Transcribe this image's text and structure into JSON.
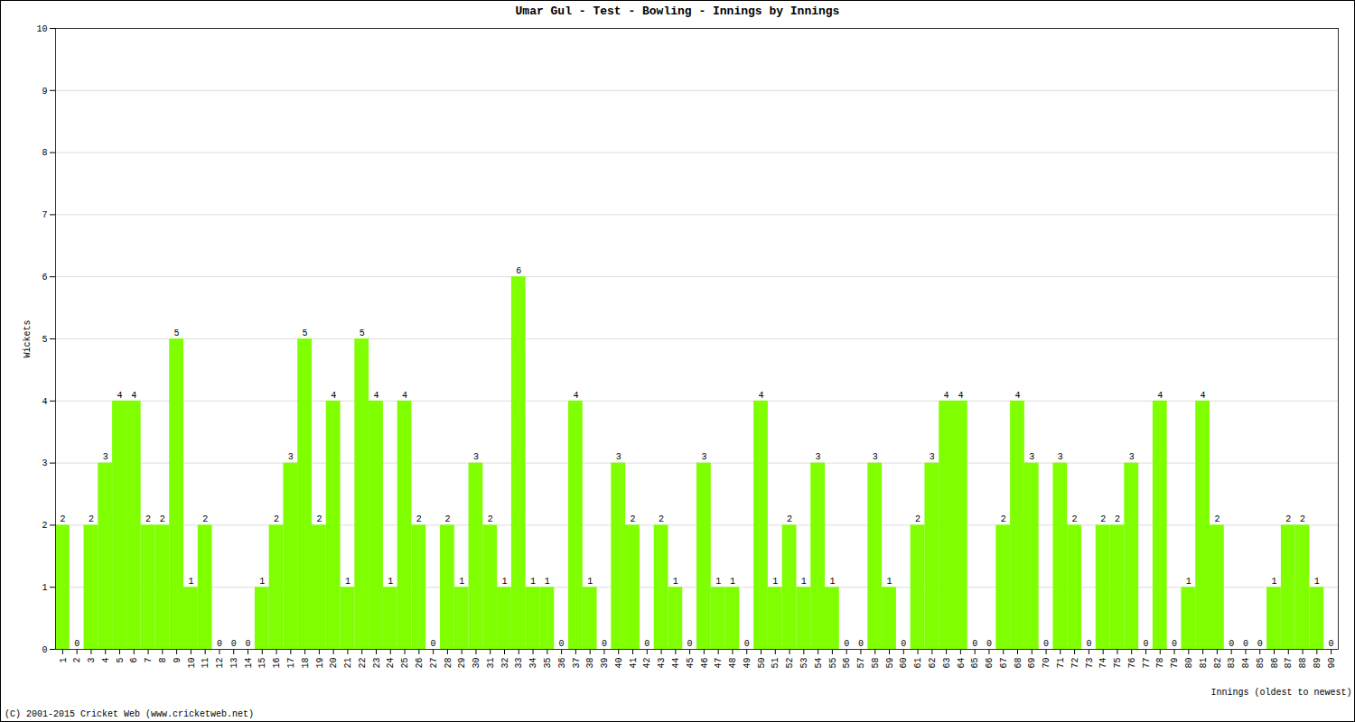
{
  "chart_data": {
    "type": "bar",
    "title": "Umar Gul - Test - Bowling - Innings by Innings",
    "x_label": "Innings (oldest to newest)",
    "y_label": "Wickets",
    "caption": "(C) 2001-2015 Cricket Web (www.cricketweb.net)",
    "categories": [
      "1",
      "2",
      "3",
      "4",
      "5",
      "6",
      "7",
      "8",
      "9",
      "10",
      "11",
      "12",
      "13",
      "14",
      "15",
      "16",
      "17",
      "18",
      "19",
      "20",
      "21",
      "22",
      "23",
      "24",
      "25",
      "26",
      "27",
      "28",
      "29",
      "30",
      "31",
      "32",
      "33",
      "34",
      "35",
      "36",
      "37",
      "38",
      "39",
      "40",
      "41",
      "42",
      "43",
      "44",
      "45",
      "46",
      "47",
      "48",
      "49",
      "50",
      "51",
      "52",
      "53",
      "54",
      "55",
      "56",
      "57",
      "58",
      "59",
      "60",
      "61",
      "62",
      "63",
      "64",
      "65",
      "66",
      "67",
      "68",
      "69",
      "70",
      "71",
      "72",
      "73",
      "74",
      "75",
      "76",
      "77",
      "78",
      "79",
      "80",
      "81",
      "82",
      "83",
      "84",
      "85",
      "86",
      "87",
      "88",
      "89",
      "90"
    ],
    "values": [
      2,
      0,
      2,
      3,
      4,
      4,
      2,
      2,
      5,
      1,
      2,
      0,
      0,
      0,
      1,
      2,
      3,
      5,
      2,
      4,
      1,
      5,
      4,
      1,
      4,
      2,
      0,
      2,
      1,
      3,
      2,
      1,
      6,
      1,
      1,
      0,
      4,
      1,
      0,
      3,
      2,
      0,
      2,
      1,
      0,
      3,
      1,
      1,
      0,
      4,
      1,
      2,
      1,
      3,
      1,
      0,
      0,
      3,
      1,
      0,
      2,
      3,
      4,
      4,
      0,
      0,
      2,
      4,
      3,
      0,
      3,
      2,
      0,
      2,
      2,
      3,
      0,
      4,
      0,
      1,
      4,
      2,
      0,
      0,
      0,
      1,
      2,
      2,
      1,
      0
    ],
    "color": "#7fff00",
    "ylim": [
      0,
      10
    ],
    "yticks": [
      0,
      1,
      2,
      3,
      4,
      5,
      6,
      7,
      8,
      9,
      10
    ],
    "grid": true,
    "data_labels": true
  }
}
